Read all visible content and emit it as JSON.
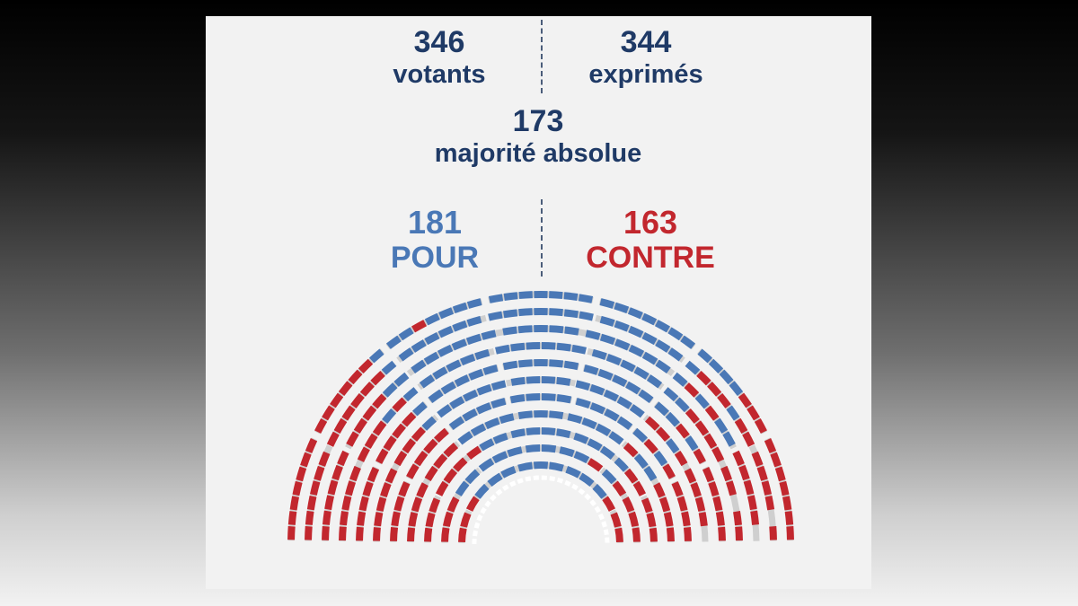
{
  "stats": {
    "votants": {
      "value": "346",
      "label": "votants"
    },
    "exprimes": {
      "value": "344",
      "label": "exprimés"
    },
    "majorite": {
      "value": "173",
      "label": "majorité absolue"
    },
    "pour": {
      "value": "181",
      "label": "POUR"
    },
    "contre": {
      "value": "163",
      "label": "CONTRE"
    }
  },
  "colors": {
    "pour": "#4a78b6",
    "contre": "#c2272e",
    "non_votant": "#cfcfcf",
    "vacant": "#ffffff",
    "text": "#1f3a66"
  },
  "chart_data": {
    "type": "hemicycle",
    "total_seats": 348,
    "series": [
      {
        "name": "POUR",
        "values": [
          181
        ]
      },
      {
        "name": "CONTRE",
        "values": [
          163
        ]
      }
    ],
    "votants": 346,
    "exprimes": 344,
    "majorite_absolue": 173
  }
}
